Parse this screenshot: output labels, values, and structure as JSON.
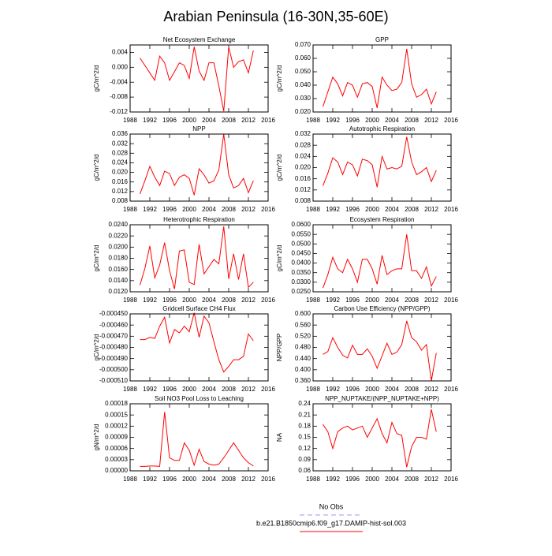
{
  "title": "Arabian Peninsula (16-30N,35-60E)",
  "legend": [
    {
      "name": "No Obs",
      "color": "#9999ff",
      "dash": true
    },
    {
      "name": "b.e21.B1850cmip6.f09_g17.DAMIP-hist-sol.003",
      "color": "#ff0000",
      "dash": false
    }
  ],
  "chart_data": [
    {
      "type": "line",
      "title": "Net Ecosystem Exchange",
      "y_label": "gC/m^2/d",
      "color": "#ff0000",
      "x": [
        1990,
        1991,
        1992,
        1993,
        1994,
        1995,
        1996,
        1997,
        1998,
        1999,
        2000,
        2001,
        2002,
        2003,
        2004,
        2005,
        2006,
        2007,
        2008,
        2009,
        2010,
        2011,
        2012,
        2013
      ],
      "values": [
        0.0025,
        0.0005,
        -0.0015,
        -0.0035,
        0.003,
        0.0012,
        -0.0035,
        -0.0012,
        0.0012,
        0.0005,
        -0.003,
        0.0055,
        -0.001,
        -0.0035,
        0.0012,
        0.0012,
        -0.005,
        -0.0118,
        0.0055,
        0.0,
        0.0015,
        0.002,
        -0.0015,
        0.0045
      ],
      "xlim": [
        1988,
        2016
      ],
      "xticks": [
        1988,
        1992,
        1996,
        2000,
        2004,
        2008,
        2012,
        2016
      ],
      "ylim": [
        -0.012,
        0.006
      ],
      "yticks": [
        -0.012,
        -0.008,
        -0.004,
        {
          "value": 0,
          "label": "0.000"
        },
        0.004
      ]
    },
    {
      "type": "line",
      "title": "GPP",
      "y_label": "gC/m^2/d",
      "color": "#ff0000",
      "x": [
        1990,
        1991,
        1992,
        1993,
        1994,
        1995,
        1996,
        1997,
        1998,
        1999,
        2000,
        2001,
        2002,
        2003,
        2004,
        2005,
        2006,
        2007,
        2008,
        2009,
        2010,
        2011,
        2012,
        2013
      ],
      "values": [
        0.024,
        0.035,
        0.046,
        0.041,
        0.032,
        0.042,
        0.04,
        0.031,
        0.041,
        0.042,
        0.039,
        0.023,
        0.046,
        0.04,
        0.036,
        0.037,
        0.042,
        0.067,
        0.041,
        0.031,
        0.033,
        0.037,
        0.026,
        0.035
      ],
      "xlim": [
        1988,
        2016
      ],
      "xticks": [
        1988,
        1992,
        1996,
        2000,
        2004,
        2008,
        2012,
        2016
      ],
      "ylim": [
        0.02,
        0.07
      ],
      "yticks": [
        {
          "value": 0.02,
          "label": "0.020"
        },
        {
          "value": 0.03,
          "label": "0.030"
        },
        {
          "value": 0.04,
          "label": "0.040"
        },
        {
          "value": 0.05,
          "label": "0.050"
        },
        {
          "value": 0.06,
          "label": "0.060"
        },
        {
          "value": 0.07,
          "label": "0.070"
        }
      ]
    },
    {
      "type": "line",
      "title": "NPP",
      "y_label": "gC/m^2/d",
      "color": "#ff0000",
      "x": [
        1990,
        1991,
        1992,
        1993,
        1994,
        1995,
        1996,
        1997,
        1998,
        1999,
        2000,
        2001,
        2002,
        2003,
        2004,
        2005,
        2006,
        2007,
        2008,
        2009,
        2010,
        2011,
        2012,
        2013
      ],
      "values": [
        0.011,
        0.0165,
        0.0225,
        0.018,
        0.0145,
        0.0205,
        0.0195,
        0.0145,
        0.018,
        0.019,
        0.0175,
        0.0105,
        0.0215,
        0.019,
        0.0155,
        0.0165,
        0.021,
        0.036,
        0.019,
        0.0135,
        0.0145,
        0.0175,
        0.0115,
        0.0165
      ],
      "xlim": [
        1988,
        2016
      ],
      "xticks": [
        1988,
        1992,
        1996,
        2000,
        2004,
        2008,
        2012,
        2016
      ],
      "ylim": [
        0.008,
        0.036
      ],
      "yticks": [
        0.008,
        0.012,
        0.016,
        {
          "value": 0.02,
          "label": "0.020"
        },
        0.024,
        0.028,
        0.032,
        0.036
      ]
    },
    {
      "type": "line",
      "title": "Autotrophic Respiration",
      "y_label": "gC/m^2/d",
      "color": "#ff0000",
      "x": [
        1990,
        1991,
        1992,
        1993,
        1994,
        1995,
        1996,
        1997,
        1998,
        1999,
        2000,
        2001,
        2002,
        2003,
        2004,
        2005,
        2006,
        2007,
        2008,
        2009,
        2010,
        2011,
        2012,
        2013
      ],
      "values": [
        0.0135,
        0.018,
        0.0235,
        0.022,
        0.0175,
        0.022,
        0.021,
        0.017,
        0.023,
        0.0225,
        0.021,
        0.013,
        0.024,
        0.0195,
        0.02,
        0.0195,
        0.0205,
        0.031,
        0.022,
        0.0175,
        0.0185,
        0.02,
        0.015,
        0.019
      ],
      "xlim": [
        1988,
        2016
      ],
      "xticks": [
        1988,
        1992,
        1996,
        2000,
        2004,
        2008,
        2012,
        2016
      ],
      "ylim": [
        0.008,
        0.032
      ],
      "yticks": [
        0.008,
        0.012,
        0.016,
        {
          "value": 0.02,
          "label": "0.020"
        },
        0.024,
        0.028,
        0.032
      ]
    },
    {
      "type": "line",
      "title": "Heterotrophic Respiration",
      "y_label": "gC/m^2/d",
      "color": "#ff0000",
      "x": [
        1990,
        1991,
        1992,
        1993,
        1994,
        1995,
        1996,
        1997,
        1998,
        1999,
        2000,
        2001,
        2002,
        2003,
        2004,
        2005,
        2006,
        2007,
        2008,
        2009,
        2010,
        2011,
        2012,
        2013
      ],
      "values": [
        0.0132,
        0.0162,
        0.0202,
        0.0145,
        0.0168,
        0.0208,
        0.0158,
        0.0125,
        0.0193,
        0.0195,
        0.0137,
        0.0133,
        0.0205,
        0.0152,
        0.0165,
        0.0178,
        0.017,
        0.0237,
        0.0143,
        0.0188,
        0.0142,
        0.0188,
        0.0128,
        0.0137
      ],
      "xlim": [
        1988,
        2016
      ],
      "xticks": [
        1988,
        1992,
        1996,
        2000,
        2004,
        2008,
        2012,
        2016
      ],
      "ylim": [
        0.012,
        0.024
      ],
      "yticks": [
        {
          "value": 0.012,
          "label": "0.0120"
        },
        {
          "value": 0.014,
          "label": "0.0140"
        },
        {
          "value": 0.016,
          "label": "0.0160"
        },
        {
          "value": 0.018,
          "label": "0.0180"
        },
        {
          "value": 0.02,
          "label": "0.0200"
        },
        {
          "value": 0.022,
          "label": "0.0220"
        },
        {
          "value": 0.024,
          "label": "0.0240"
        }
      ]
    },
    {
      "type": "line",
      "title": "Ecosystem Respiration",
      "y_label": "gC/m^2/d",
      "color": "#ff0000",
      "x": [
        1990,
        1991,
        1992,
        1993,
        1994,
        1995,
        1996,
        1997,
        1998,
        1999,
        2000,
        2001,
        2002,
        2003,
        2004,
        2005,
        2006,
        2007,
        2008,
        2009,
        2010,
        2011,
        2012,
        2013
      ],
      "values": [
        0.027,
        0.034,
        0.043,
        0.037,
        0.035,
        0.042,
        0.037,
        0.03,
        0.042,
        0.042,
        0.037,
        0.029,
        0.044,
        0.034,
        0.036,
        0.037,
        0.037,
        0.055,
        0.036,
        0.036,
        0.032,
        0.038,
        0.028,
        0.033
      ],
      "xlim": [
        1988,
        2016
      ],
      "xticks": [
        1988,
        1992,
        1996,
        2000,
        2004,
        2008,
        2012,
        2016
      ],
      "ylim": [
        0.025,
        0.06
      ],
      "yticks": [
        {
          "value": 0.025,
          "label": "0.0250"
        },
        {
          "value": 0.03,
          "label": "0.0300"
        },
        {
          "value": 0.035,
          "label": "0.0350"
        },
        {
          "value": 0.04,
          "label": "0.0400"
        },
        {
          "value": 0.045,
          "label": "0.0450"
        },
        {
          "value": 0.05,
          "label": "0.0500"
        },
        {
          "value": 0.055,
          "label": "0.0550"
        },
        {
          "value": 0.06,
          "label": "0.0600"
        }
      ]
    },
    {
      "type": "line",
      "title": "Gridcell Surface CH4 Flux",
      "y_label": "gC/m^2/d",
      "color": "#ff0000",
      "x": [
        1990,
        1991,
        1992,
        1993,
        1994,
        1995,
        1996,
        1997,
        1998,
        1999,
        2000,
        2001,
        2002,
        2003,
        2004,
        2005,
        2006,
        2007,
        2008,
        2009,
        2010,
        2011,
        2012,
        2013
      ],
      "values": [
        -0.000473,
        -0.000473,
        -0.000471,
        -0.000472,
        -0.000461,
        -0.000453,
        -0.000476,
        -0.000464,
        -0.000467,
        -0.000461,
        -0.000466,
        -0.000449,
        -0.000471,
        -0.000452,
        -0.000458,
        -0.000475,
        -0.000491,
        -0.000502,
        -0.000497,
        -0.000491,
        -0.000491,
        -0.000488,
        -0.000468,
        -0.000474
      ],
      "xlim": [
        1988,
        2016
      ],
      "xticks": [
        1988,
        1992,
        1996,
        2000,
        2004,
        2008,
        2012,
        2016
      ],
      "ylim": [
        -0.00051,
        -0.00045
      ],
      "yticks": [
        {
          "value": -0.00051,
          "label": "-0.000510"
        },
        {
          "value": -0.0005,
          "label": "-0.000500"
        },
        {
          "value": -0.00049,
          "label": "-0.000490"
        },
        {
          "value": -0.00048,
          "label": "-0.000480"
        },
        {
          "value": -0.00047,
          "label": "-0.000470"
        },
        {
          "value": -0.00046,
          "label": "-0.000460"
        },
        {
          "value": -0.00045,
          "label": "-0.000450"
        }
      ]
    },
    {
      "type": "line",
      "title": "Carbon Use Efficiency (NPP/GPP)",
      "y_label": "NPP/GPP",
      "color": "#ff0000",
      "x": [
        1990,
        1991,
        1992,
        1993,
        1994,
        1995,
        1996,
        1997,
        1998,
        1999,
        2000,
        2001,
        2002,
        2003,
        2004,
        2005,
        2006,
        2007,
        2008,
        2009,
        2010,
        2011,
        2012,
        2013
      ],
      "values": [
        0.455,
        0.465,
        0.515,
        0.48,
        0.452,
        0.442,
        0.488,
        0.455,
        0.455,
        0.475,
        0.448,
        0.405,
        0.45,
        0.495,
        0.455,
        0.463,
        0.49,
        0.575,
        0.515,
        0.5,
        0.47,
        0.49,
        0.36,
        0.46
      ],
      "xlim": [
        1988,
        2016
      ],
      "xticks": [
        1988,
        1992,
        1996,
        2000,
        2004,
        2008,
        2012,
        2016
      ],
      "ylim": [
        0.36,
        0.6
      ],
      "yticks": [
        {
          "value": 0.36,
          "label": "0.360"
        },
        {
          "value": 0.4,
          "label": "0.400"
        },
        {
          "value": 0.44,
          "label": "0.440"
        },
        {
          "value": 0.48,
          "label": "0.480"
        },
        {
          "value": 0.52,
          "label": "0.520"
        },
        {
          "value": 0.56,
          "label": "0.560"
        },
        {
          "value": 0.6,
          "label": "0.600"
        }
      ]
    },
    {
      "type": "line",
      "title": "Soil NO3 Pool Loss to Leaching",
      "y_label": "gN/m^2/d",
      "color": "#ff0000",
      "x": [
        1990,
        1991,
        1992,
        1993,
        1994,
        1995,
        1996,
        1997,
        1998,
        1999,
        2000,
        2001,
        2002,
        2003,
        2004,
        2005,
        2006,
        2007,
        2008,
        2009,
        2010,
        2011,
        2012,
        2013
      ],
      "values": [
        1.2e-05,
        1.2e-05,
        1.3e-05,
        1.3e-05,
        1.2e-05,
        0.000158,
        3.5e-05,
        2.8e-05,
        2.8e-05,
        7.5e-05,
        5.5e-05,
        1.5e-05,
        5.8e-05,
        2.5e-05,
        1.8e-05,
        1.5e-05,
        1.8e-05,
        3.5e-05,
        5.5e-05,
        7.5e-05,
        5.5e-05,
        3.5e-05,
        2.2e-05,
        1.3e-05
      ],
      "xlim": [
        1988,
        2016
      ],
      "xticks": [
        1988,
        1992,
        1996,
        2000,
        2004,
        2008,
        2012,
        2016
      ],
      "ylim": [
        0,
        0.00018
      ],
      "yticks": [
        {
          "value": 0,
          "label": "0.00000"
        },
        {
          "value": 3e-05,
          "label": "0.00003"
        },
        {
          "value": 6e-05,
          "label": "0.00006"
        },
        {
          "value": 9e-05,
          "label": "0.00009"
        },
        {
          "value": 0.00012,
          "label": "0.00012"
        },
        {
          "value": 0.00015,
          "label": "0.00015"
        },
        {
          "value": 0.00018,
          "label": "0.00018"
        }
      ]
    },
    {
      "type": "line",
      "title": "NPP_NUPTAKE/(NPP_NUPTAKE+NPP)",
      "y_label": "NA",
      "color": "#ff0000",
      "x": [
        1990,
        1991,
        1992,
        1993,
        1994,
        1995,
        1996,
        1997,
        1998,
        1999,
        2000,
        2001,
        2002,
        2003,
        2004,
        2005,
        2006,
        2007,
        2008,
        2009,
        2010,
        2011,
        2012,
        2013
      ],
      "values": [
        0.185,
        0.165,
        0.12,
        0.165,
        0.175,
        0.18,
        0.17,
        0.175,
        0.18,
        0.15,
        0.175,
        0.2,
        0.16,
        0.135,
        0.19,
        0.16,
        0.155,
        0.07,
        0.125,
        0.15,
        0.15,
        0.145,
        0.225,
        0.165
      ],
      "xlim": [
        1988,
        2016
      ],
      "xticks": [
        1988,
        1992,
        1996,
        2000,
        2004,
        2008,
        2012,
        2016
      ],
      "ylim": [
        0.06,
        0.24
      ],
      "yticks": [
        0.06,
        0.09,
        0.12,
        0.15,
        0.18,
        0.21,
        0.24
      ]
    }
  ]
}
